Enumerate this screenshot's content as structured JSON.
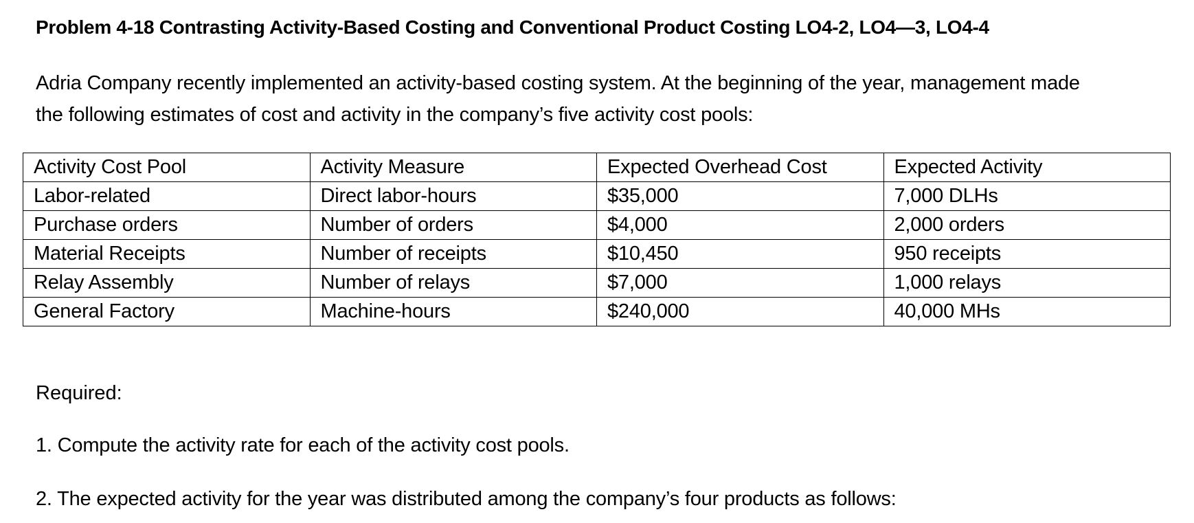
{
  "title": "Problem 4-18 Contrasting Activity-Based Costing and Conventional Product Costing LO4-2, LO4—3, LO4-4",
  "intro": {
    "line1": "Adria Company recently implemented an activity-based costing system. At the beginning of the year, management made",
    "line2": "the following estimates of cost and activity in the company’s five activity cost pools:"
  },
  "table": {
    "headers": [
      "Activity Cost Pool",
      "Activity Measure",
      "Expected Overhead Cost",
      "Expected Activity"
    ],
    "rows": [
      [
        "Labor-related",
        "Direct labor-hours",
        "$35,000",
        "7,000 DLHs"
      ],
      [
        "Purchase orders",
        "Number of orders",
        "$4,000",
        "2,000 orders"
      ],
      [
        "Material Receipts",
        "Number of receipts",
        "$10,450",
        "950 receipts"
      ],
      [
        "Relay Assembly",
        "Number of relays",
        "$7,000",
        "1,000 relays"
      ],
      [
        "General Factory",
        "Machine-hours",
        "$240,000",
        "40,000 MHs"
      ]
    ]
  },
  "required": {
    "label": "Required:",
    "items": [
      "1. Compute the activity rate for each of the activity cost pools.",
      "2. The expected activity for the year was distributed among the company’s four products as follows:"
    ]
  }
}
